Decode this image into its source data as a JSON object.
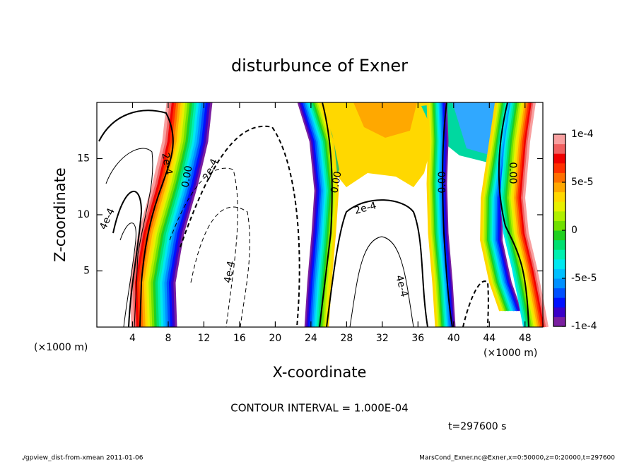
{
  "chart_data": {
    "type": "contour",
    "title": "disturbunce of Exner",
    "xlabel": "X-coordinate",
    "ylabel": "Z-coordinate",
    "x_unit_left": "(×1000 m)",
    "x_unit_right": "(×1000 m)",
    "xlim": [
      0,
      50
    ],
    "ylim": [
      0,
      20
    ],
    "xticks": [
      4,
      8,
      12,
      16,
      20,
      24,
      28,
      32,
      36,
      40,
      44,
      48
    ],
    "yticks": [
      5,
      10,
      15
    ],
    "colorbar": {
      "lim": [
        -0.0001,
        0.0001
      ],
      "ticks": [
        {
          "value": 0.0001,
          "label": "1e-4"
        },
        {
          "value": 5e-05,
          "label": "5e-5"
        },
        0,
        {
          "value": -5e-05,
          "label": "-5e-5"
        },
        {
          "value": -0.0001,
          "label": "-1e-4"
        }
      ],
      "colors": [
        "#7a1fa0",
        "#3a00c8",
        "#0010ff",
        "#0050ff",
        "#0090ff",
        "#00c0ff",
        "#00e8f0",
        "#00f0b0",
        "#00e070",
        "#20d020",
        "#70e000",
        "#b0f000",
        "#e8f000",
        "#ffd800",
        "#ffa800",
        "#ff7000",
        "#ff3000",
        "#f00000",
        "#f06060",
        "#f8a0a0"
      ]
    },
    "annotations": [
      "2e-4",
      "0.00",
      "2e-4",
      "4e-4",
      "4e-4",
      "0.00",
      "2e-4",
      "4e-4",
      "0.00",
      "0.00"
    ],
    "contour_interval": "CONTOUR INTERVAL = 1.000E-04",
    "time_label": "t=297600 s",
    "footer_left": "./gpview_dist-from-xmean  2011-01-06",
    "footer_right": "MarsCond_Exner.nc@Exner,x=0:50000,z=0:20000,t=297600"
  }
}
